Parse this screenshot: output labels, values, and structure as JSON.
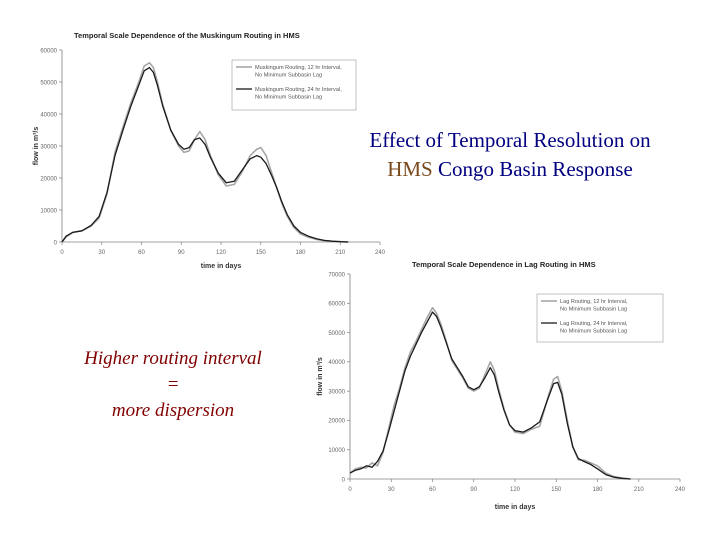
{
  "slide": {
    "title_line1": "Effect of Temporal Resolution on",
    "title_hms": "HMS",
    "title_line2_rest": " Congo Basin Response",
    "note_line1": "Higher routing interval",
    "note_line2": "=",
    "note_line3": "more dispersion"
  },
  "colors": {
    "title": "#000080",
    "hms": "#7a4a1c",
    "note": "#800000",
    "series_fine": "#a6a6a6",
    "series_coarse": "#1a1a1a",
    "axis": "#808080"
  },
  "chart_data": [
    {
      "type": "line",
      "title": "Temporal Scale Dependence of the Muskingum Routing in HMS",
      "xlabel": "time in days",
      "ylabel": "flow in m³/s",
      "xlim": [
        0,
        240
      ],
      "ylim": [
        0,
        60000
      ],
      "xticks": [
        0,
        30,
        60,
        90,
        120,
        150,
        180,
        210,
        240
      ],
      "yticks": [
        0,
        10000,
        20000,
        30000,
        40000,
        50000,
        60000
      ],
      "ytick_labels": [
        "0",
        "10000",
        "20000",
        "30000",
        "40000",
        "50000",
        "60000"
      ],
      "legend_position": "top-right",
      "grid": false,
      "series": [
        {
          "name": "Muskingum Routing, 12 hr Interval, No Minimum Subbasin Lag",
          "color": "#a6a6a6",
          "x": [
            0,
            3,
            8,
            15,
            22,
            28,
            34,
            40,
            46,
            52,
            58,
            62,
            66,
            69,
            72,
            76,
            82,
            88,
            92,
            96,
            100,
            104,
            108,
            112,
            118,
            124,
            130,
            136,
            142,
            147,
            150,
            154,
            158,
            162,
            166,
            170,
            175,
            180,
            186,
            192,
            198,
            204,
            210,
            216
          ],
          "y": [
            0,
            1500,
            3000,
            3500,
            5000,
            7500,
            15000,
            28000,
            36000,
            43500,
            50000,
            55000,
            56000,
            54500,
            50000,
            43000,
            35000,
            30000,
            28000,
            28500,
            32000,
            34500,
            32000,
            27000,
            21000,
            17500,
            18000,
            22000,
            27000,
            29000,
            29500,
            27000,
            22000,
            17000,
            12000,
            8000,
            4500,
            2500,
            1500,
            800,
            400,
            200,
            100,
            0
          ]
        },
        {
          "name": "Muskingum Routing, 24 hr Interval, No Minimum Subbasin Lag",
          "color": "#1a1a1a",
          "x": [
            0,
            3,
            8,
            15,
            22,
            28,
            34,
            40,
            46,
            52,
            58,
            62,
            66,
            69,
            72,
            76,
            82,
            88,
            92,
            96,
            100,
            104,
            108,
            112,
            118,
            124,
            130,
            136,
            142,
            147,
            150,
            154,
            158,
            162,
            166,
            170,
            175,
            180,
            186,
            192,
            198,
            204,
            210,
            216
          ],
          "y": [
            0,
            1800,
            3000,
            3500,
            5200,
            8000,
            15500,
            27000,
            35000,
            42500,
            49000,
            53500,
            54500,
            53000,
            49000,
            42500,
            35000,
            30500,
            29000,
            29500,
            32000,
            32500,
            30500,
            26500,
            21500,
            18500,
            19000,
            22500,
            26000,
            27000,
            26500,
            24500,
            21000,
            17000,
            12500,
            8500,
            5000,
            3000,
            1800,
            1000,
            500,
            250,
            100,
            0
          ]
        }
      ]
    },
    {
      "type": "line",
      "title": "Temporal Scale Dependence in Lag Routing in HMS",
      "xlabel": "time in days",
      "ylabel": "flow in m³/s",
      "xlim": [
        0,
        240
      ],
      "ylim": [
        0,
        70000
      ],
      "xticks": [
        0,
        30,
        60,
        90,
        120,
        150,
        180,
        210,
        240
      ],
      "yticks": [
        0,
        10000,
        20000,
        30000,
        40000,
        50000,
        60000,
        70000
      ],
      "ytick_labels": [
        "0",
        "10000",
        "20000",
        "30000",
        "40000",
        "50000",
        "60000",
        "70000"
      ],
      "legend_position": "top-right",
      "grid": false,
      "series": [
        {
          "name": "Lag Routing, 12 hr Interval, No Minimum Subbasin Lag",
          "color": "#a6a6a6",
          "x": [
            0,
            4,
            8,
            12,
            16,
            20,
            24,
            28,
            32,
            36,
            40,
            44,
            48,
            52,
            56,
            60,
            63,
            66,
            70,
            74,
            78,
            82,
            86,
            90,
            94,
            98,
            102,
            105,
            108,
            112,
            116,
            120,
            126,
            132,
            138,
            144,
            148,
            151,
            154,
            158,
            162,
            166,
            170,
            175,
            180,
            186,
            192,
            198,
            204
          ],
          "y": [
            2000,
            3500,
            4000,
            3800,
            5500,
            4500,
            9000,
            17000,
            25000,
            31000,
            38000,
            43500,
            47000,
            51000,
            55000,
            58500,
            56500,
            53000,
            47000,
            40500,
            37500,
            34500,
            31000,
            30000,
            31000,
            35500,
            40000,
            37000,
            31000,
            24000,
            18500,
            16000,
            15500,
            17000,
            18000,
            28000,
            34000,
            35000,
            30000,
            20000,
            11000,
            6500,
            6500,
            5500,
            4500,
            2000,
            800,
            300,
            0
          ]
        },
        {
          "name": "Lag Routing, 24 hr Interval, No Minimum Subbasin Lag",
          "color": "#1a1a1a",
          "x": [
            0,
            4,
            8,
            12,
            16,
            20,
            24,
            28,
            32,
            36,
            40,
            44,
            48,
            52,
            56,
            60,
            63,
            66,
            70,
            74,
            78,
            82,
            86,
            90,
            94,
            98,
            102,
            105,
            108,
            112,
            116,
            120,
            126,
            132,
            138,
            144,
            148,
            151,
            154,
            158,
            162,
            166,
            170,
            175,
            180,
            186,
            192,
            198,
            204
          ],
          "y": [
            2000,
            3000,
            3500,
            4500,
            4000,
            6000,
            9500,
            16000,
            23000,
            30000,
            37000,
            42000,
            46000,
            50000,
            53500,
            57000,
            55500,
            52000,
            46500,
            41000,
            38000,
            35000,
            31500,
            30500,
            31500,
            34500,
            38000,
            35500,
            30000,
            23500,
            18500,
            16500,
            16000,
            17500,
            19500,
            27500,
            32500,
            33000,
            29000,
            19000,
            11000,
            7000,
            6000,
            5000,
            3500,
            1500,
            600,
            200,
            0
          ]
        }
      ]
    }
  ]
}
